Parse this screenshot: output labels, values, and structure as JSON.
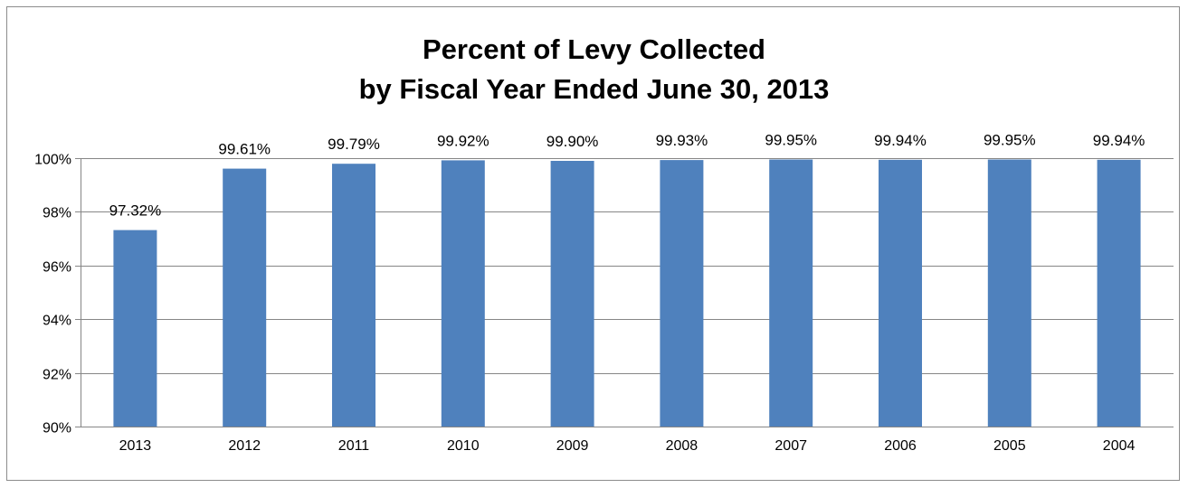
{
  "chart_data": {
    "type": "bar",
    "title": "Percent of Levy Collected",
    "subtitle": "by Fiscal Year Ended June 30, 2013",
    "categories": [
      "2013",
      "2012",
      "2011",
      "2010",
      "2009",
      "2008",
      "2007",
      "2006",
      "2005",
      "2004"
    ],
    "values": [
      97.32,
      99.61,
      99.79,
      99.92,
      99.9,
      99.93,
      99.95,
      99.94,
      99.95,
      99.94
    ],
    "data_labels": [
      "97.32%",
      "99.61%",
      "99.79%",
      "99.92%",
      "99.90%",
      "99.93%",
      "99.95%",
      "99.94%",
      "99.95%",
      "99.94%"
    ],
    "ylim": [
      90,
      100
    ],
    "yticks": [
      90,
      92,
      94,
      96,
      98,
      100
    ],
    "ytick_labels": [
      "90%",
      "92%",
      "94%",
      "96%",
      "98%",
      "100%"
    ],
    "xlabel": "",
    "ylabel": "",
    "grid": true,
    "legend": false,
    "bar_color": "#4F81BD",
    "grid_color": "#868686"
  }
}
